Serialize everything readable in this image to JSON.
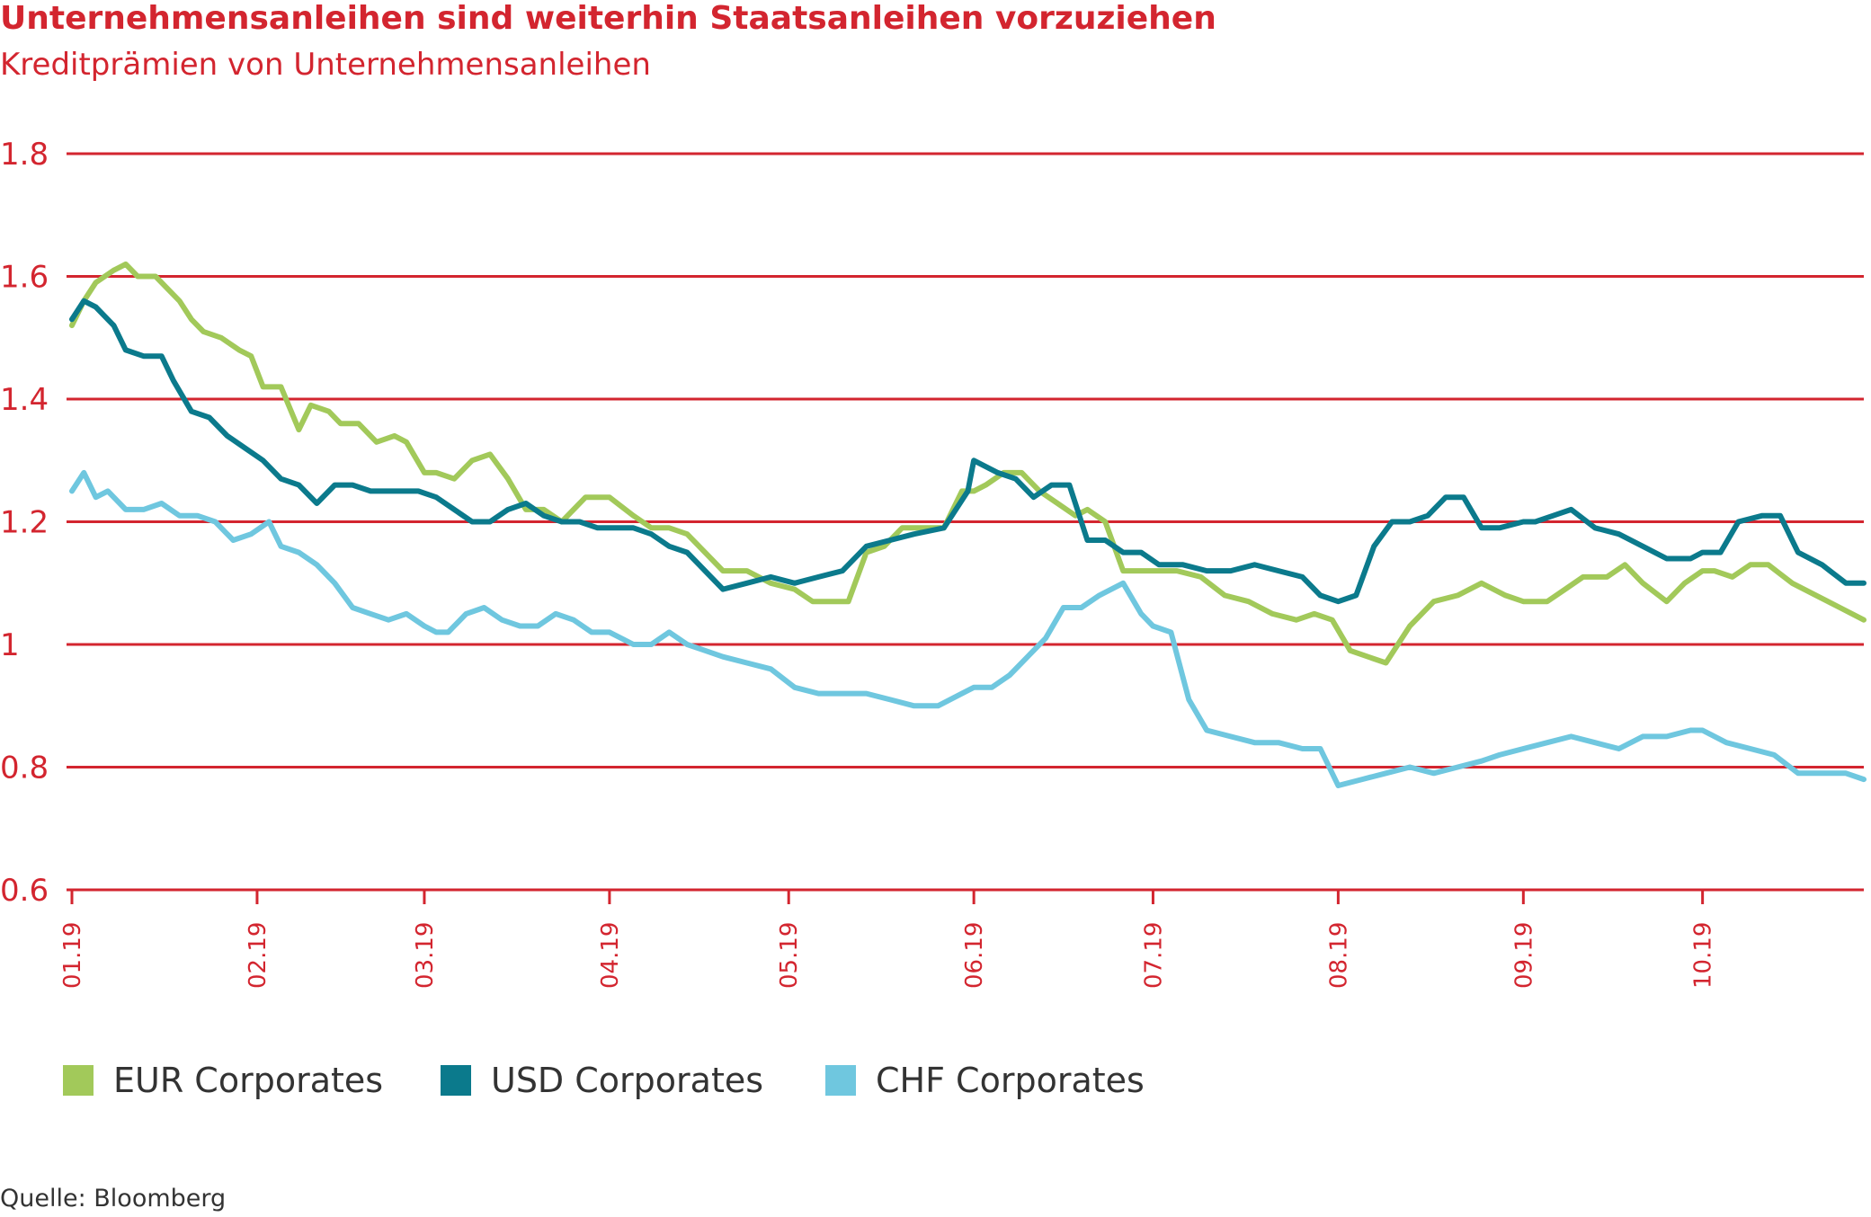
{
  "header": {
    "title": "Unternehmensanleihen sind weiterhin Staatsanleihen vorzuziehen",
    "subtitle": "Kreditprämien von Unternehmensanleihen"
  },
  "footer": {
    "source": "Quelle: Bloomberg"
  },
  "colors": {
    "accent": "#d3252f",
    "eur": "#a2c95a",
    "usd": "#0b7a8c",
    "chf": "#6fc7df"
  },
  "chart_data": {
    "type": "line",
    "title": "Unternehmensanleihen sind weiterhin Staatsanleihen vorzuziehen",
    "subtitle": "Kreditprämien von Unternehmensanleihen",
    "xlabel": "",
    "ylabel": "",
    "xlim": [
      "2019-01-01",
      "2019-10-28"
    ],
    "ylim": [
      0.6,
      1.8
    ],
    "yticks": [
      {
        "value": 0.6,
        "label": "0.6"
      },
      {
        "value": 0.8,
        "label": "0.8"
      },
      {
        "value": 1.0,
        "label": "1"
      },
      {
        "value": 1.2,
        "label": "1.2"
      },
      {
        "value": 1.4,
        "label": "1.4"
      },
      {
        "value": 1.6,
        "label": "1.6"
      },
      {
        "value": 1.8,
        "label": "1.8"
      }
    ],
    "xticks": [
      {
        "value": "2019-01-01",
        "label": "01.19"
      },
      {
        "value": "2019-02-01",
        "label": "02.19"
      },
      {
        "value": "2019-03-01",
        "label": "03.19"
      },
      {
        "value": "2019-04-01",
        "label": "04.19"
      },
      {
        "value": "2019-05-01",
        "label": "05.19"
      },
      {
        "value": "2019-06-01",
        "label": "06.19"
      },
      {
        "value": "2019-07-01",
        "label": "07.19"
      },
      {
        "value": "2019-08-01",
        "label": "08.19"
      },
      {
        "value": "2019-09-01",
        "label": "09.19"
      },
      {
        "value": "2019-10-01",
        "label": "10.19"
      }
    ],
    "grid": true,
    "legend_position": "bottom",
    "series": [
      {
        "name": "EUR Corporates",
        "color": "#a2c95a",
        "x": [
          "2019-01-01",
          "2019-01-03",
          "2019-01-05",
          "2019-01-08",
          "2019-01-10",
          "2019-01-12",
          "2019-01-15",
          "2019-01-19",
          "2019-01-21",
          "2019-01-23",
          "2019-01-26",
          "2019-01-29",
          "2019-01-31",
          "2019-02-02",
          "2019-02-05",
          "2019-02-08",
          "2019-02-10",
          "2019-02-13",
          "2019-02-15",
          "2019-02-18",
          "2019-02-21",
          "2019-02-24",
          "2019-02-26",
          "2019-03-01",
          "2019-03-03",
          "2019-03-06",
          "2019-03-09",
          "2019-03-12",
          "2019-03-15",
          "2019-03-18",
          "2019-03-21",
          "2019-03-24",
          "2019-03-26",
          "2019-03-28",
          "2019-04-01",
          "2019-04-05",
          "2019-04-08",
          "2019-04-11",
          "2019-04-14",
          "2019-04-17",
          "2019-04-20",
          "2019-04-24",
          "2019-04-28",
          "2019-05-02",
          "2019-05-05",
          "2019-05-08",
          "2019-05-11",
          "2019-05-14",
          "2019-05-17",
          "2019-05-20",
          "2019-05-24",
          "2019-05-27",
          "2019-05-30",
          "2019-06-01",
          "2019-06-03",
          "2019-06-06",
          "2019-06-09",
          "2019-06-12",
          "2019-06-15",
          "2019-06-18",
          "2019-06-20",
          "2019-06-23",
          "2019-06-26",
          "2019-07-01",
          "2019-07-05",
          "2019-07-09",
          "2019-07-13",
          "2019-07-17",
          "2019-07-21",
          "2019-07-25",
          "2019-07-28",
          "2019-07-31",
          "2019-08-03",
          "2019-08-06",
          "2019-08-09",
          "2019-08-13",
          "2019-08-17",
          "2019-08-21",
          "2019-08-25",
          "2019-08-29",
          "2019-09-01",
          "2019-09-05",
          "2019-09-08",
          "2019-09-11",
          "2019-09-13",
          "2019-09-15",
          "2019-09-18",
          "2019-09-21",
          "2019-09-25",
          "2019-09-28",
          "2019-10-01",
          "2019-10-03",
          "2019-10-06",
          "2019-10-09",
          "2019-10-12",
          "2019-10-16",
          "2019-10-20",
          "2019-10-24",
          "2019-10-28"
        ],
        "values": [
          1.52,
          1.56,
          1.59,
          1.61,
          1.62,
          1.6,
          1.6,
          1.56,
          1.53,
          1.51,
          1.5,
          1.48,
          1.47,
          1.42,
          1.42,
          1.35,
          1.39,
          1.38,
          1.36,
          1.36,
          1.33,
          1.34,
          1.33,
          1.28,
          1.28,
          1.27,
          1.3,
          1.31,
          1.27,
          1.22,
          1.22,
          1.2,
          1.22,
          1.24,
          1.24,
          1.21,
          1.19,
          1.19,
          1.18,
          1.15,
          1.12,
          1.12,
          1.1,
          1.09,
          1.07,
          1.07,
          1.07,
          1.15,
          1.16,
          1.19,
          1.19,
          1.19,
          1.25,
          1.25,
          1.26,
          1.28,
          1.28,
          1.25,
          1.23,
          1.21,
          1.22,
          1.2,
          1.12,
          1.12,
          1.12,
          1.11,
          1.08,
          1.07,
          1.05,
          1.04,
          1.05,
          1.04,
          0.99,
          0.98,
          0.97,
          1.03,
          1.07,
          1.08,
          1.1,
          1.08,
          1.07,
          1.07,
          1.09,
          1.11,
          1.11,
          1.11,
          1.13,
          1.1,
          1.07,
          1.1,
          1.12,
          1.12,
          1.11,
          1.13,
          1.13,
          1.1,
          1.08,
          1.06,
          1.04
        ]
      },
      {
        "name": "USD Corporates",
        "color": "#0b7a8c",
        "x": [
          "2019-01-01",
          "2019-01-03",
          "2019-01-05",
          "2019-01-08",
          "2019-01-10",
          "2019-01-13",
          "2019-01-16",
          "2019-01-18",
          "2019-01-21",
          "2019-01-24",
          "2019-01-27",
          "2019-01-30",
          "2019-02-02",
          "2019-02-05",
          "2019-02-08",
          "2019-02-11",
          "2019-02-14",
          "2019-02-17",
          "2019-02-20",
          "2019-02-24",
          "2019-02-28",
          "2019-03-03",
          "2019-03-06",
          "2019-03-09",
          "2019-03-12",
          "2019-03-15",
          "2019-03-18",
          "2019-03-21",
          "2019-03-24",
          "2019-03-27",
          "2019-03-30",
          "2019-04-02",
          "2019-04-05",
          "2019-04-08",
          "2019-04-11",
          "2019-04-14",
          "2019-04-17",
          "2019-04-20",
          "2019-04-24",
          "2019-04-28",
          "2019-05-02",
          "2019-05-06",
          "2019-05-10",
          "2019-05-14",
          "2019-05-18",
          "2019-05-22",
          "2019-05-27",
          "2019-05-31",
          "2019-06-01",
          "2019-06-05",
          "2019-06-08",
          "2019-06-11",
          "2019-06-14",
          "2019-06-17",
          "2019-06-20",
          "2019-06-23",
          "2019-06-26",
          "2019-06-29",
          "2019-07-02",
          "2019-07-06",
          "2019-07-10",
          "2019-07-14",
          "2019-07-18",
          "2019-07-22",
          "2019-07-26",
          "2019-07-29",
          "2019-08-01",
          "2019-08-04",
          "2019-08-07",
          "2019-08-10",
          "2019-08-13",
          "2019-08-16",
          "2019-08-19",
          "2019-08-22",
          "2019-08-25",
          "2019-08-28",
          "2019-09-01",
          "2019-09-03",
          "2019-09-06",
          "2019-09-09",
          "2019-09-13",
          "2019-09-17",
          "2019-09-21",
          "2019-09-25",
          "2019-09-29",
          "2019-10-01",
          "2019-10-04",
          "2019-10-07",
          "2019-10-11",
          "2019-10-14",
          "2019-10-17",
          "2019-10-21",
          "2019-10-25",
          "2019-10-28"
        ],
        "values": [
          1.53,
          1.56,
          1.55,
          1.52,
          1.48,
          1.47,
          1.47,
          1.43,
          1.38,
          1.37,
          1.34,
          1.32,
          1.3,
          1.27,
          1.26,
          1.23,
          1.26,
          1.26,
          1.25,
          1.25,
          1.25,
          1.24,
          1.22,
          1.2,
          1.2,
          1.22,
          1.23,
          1.21,
          1.2,
          1.2,
          1.19,
          1.19,
          1.19,
          1.18,
          1.16,
          1.15,
          1.12,
          1.09,
          1.1,
          1.11,
          1.1,
          1.11,
          1.12,
          1.16,
          1.17,
          1.18,
          1.19,
          1.25,
          1.3,
          1.28,
          1.27,
          1.24,
          1.26,
          1.26,
          1.17,
          1.17,
          1.15,
          1.15,
          1.13,
          1.13,
          1.12,
          1.12,
          1.13,
          1.12,
          1.11,
          1.08,
          1.07,
          1.08,
          1.16,
          1.2,
          1.2,
          1.21,
          1.24,
          1.24,
          1.19,
          1.19,
          1.2,
          1.2,
          1.21,
          1.22,
          1.19,
          1.18,
          1.16,
          1.14,
          1.14,
          1.15,
          1.15,
          1.2,
          1.21,
          1.21,
          1.15,
          1.13,
          1.1,
          1.1
        ]
      },
      {
        "name": "CHF Corporates",
        "color": "#6fc7df",
        "x": [
          "2019-01-01",
          "2019-01-03",
          "2019-01-05",
          "2019-01-07",
          "2019-01-10",
          "2019-01-13",
          "2019-01-16",
          "2019-01-19",
          "2019-01-22",
          "2019-01-25",
          "2019-01-28",
          "2019-01-31",
          "2019-02-03",
          "2019-02-05",
          "2019-02-08",
          "2019-02-11",
          "2019-02-14",
          "2019-02-17",
          "2019-02-20",
          "2019-02-23",
          "2019-02-26",
          "2019-03-01",
          "2019-03-03",
          "2019-03-05",
          "2019-03-08",
          "2019-03-11",
          "2019-03-14",
          "2019-03-17",
          "2019-03-20",
          "2019-03-23",
          "2019-03-26",
          "2019-03-29",
          "2019-04-01",
          "2019-04-05",
          "2019-04-08",
          "2019-04-11",
          "2019-04-14",
          "2019-04-17",
          "2019-04-20",
          "2019-04-24",
          "2019-04-28",
          "2019-05-02",
          "2019-05-06",
          "2019-05-10",
          "2019-05-14",
          "2019-05-18",
          "2019-05-22",
          "2019-05-26",
          "2019-05-30",
          "2019-06-01",
          "2019-06-04",
          "2019-06-07",
          "2019-06-10",
          "2019-06-13",
          "2019-06-16",
          "2019-06-19",
          "2019-06-22",
          "2019-06-26",
          "2019-06-29",
          "2019-07-01",
          "2019-07-04",
          "2019-07-07",
          "2019-07-10",
          "2019-07-14",
          "2019-07-18",
          "2019-07-22",
          "2019-07-26",
          "2019-07-29",
          "2019-08-01",
          "2019-08-05",
          "2019-08-09",
          "2019-08-13",
          "2019-08-17",
          "2019-08-21",
          "2019-08-25",
          "2019-08-28",
          "2019-09-01",
          "2019-09-05",
          "2019-09-09",
          "2019-09-13",
          "2019-09-17",
          "2019-09-21",
          "2019-09-25",
          "2019-09-29",
          "2019-10-01",
          "2019-10-05",
          "2019-10-09",
          "2019-10-13",
          "2019-10-17",
          "2019-10-21",
          "2019-10-25",
          "2019-10-28"
        ],
        "values": [
          1.25,
          1.28,
          1.24,
          1.25,
          1.22,
          1.22,
          1.23,
          1.21,
          1.21,
          1.2,
          1.17,
          1.18,
          1.2,
          1.16,
          1.15,
          1.13,
          1.1,
          1.06,
          1.05,
          1.04,
          1.05,
          1.03,
          1.02,
          1.02,
          1.05,
          1.06,
          1.04,
          1.03,
          1.03,
          1.05,
          1.04,
          1.02,
          1.02,
          1.0,
          1.0,
          1.02,
          1.0,
          0.99,
          0.98,
          0.97,
          0.96,
          0.93,
          0.92,
          0.92,
          0.92,
          0.91,
          0.9,
          0.9,
          0.92,
          0.93,
          0.93,
          0.95,
          0.98,
          1.01,
          1.06,
          1.06,
          1.08,
          1.1,
          1.05,
          1.03,
          1.02,
          0.91,
          0.86,
          0.85,
          0.84,
          0.84,
          0.83,
          0.83,
          0.77,
          0.78,
          0.79,
          0.8,
          0.79,
          0.8,
          0.81,
          0.82,
          0.83,
          0.84,
          0.85,
          0.84,
          0.83,
          0.85,
          0.85,
          0.86,
          0.86,
          0.84,
          0.83,
          0.82,
          0.79,
          0.79,
          0.79,
          0.78
        ]
      }
    ]
  }
}
